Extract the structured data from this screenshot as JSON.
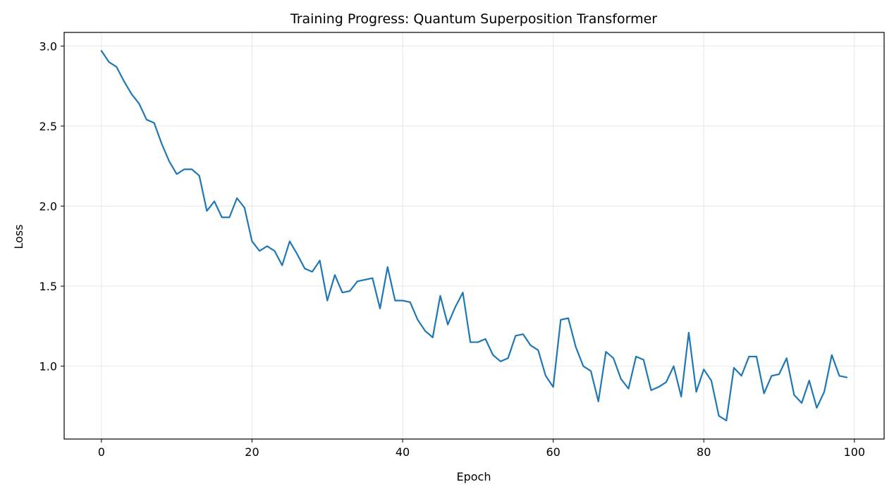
{
  "chart_data": {
    "type": "line",
    "title": "Training Progress: Quantum Superposition Transformer",
    "xlabel": "Epoch",
    "ylabel": "Loss",
    "xlim": [
      -4.95,
      103.95
    ],
    "ylim": [
      0.545,
      3.085
    ],
    "grid": true,
    "x_ticks": [
      0,
      20,
      40,
      60,
      80,
      100
    ],
    "x_tick_labels": [
      "0",
      "20",
      "40",
      "60",
      "80",
      "100"
    ],
    "y_ticks": [
      1.0,
      1.5,
      2.0,
      2.5,
      3.0
    ],
    "y_tick_labels": [
      "1.0",
      "1.5",
      "2.0",
      "2.5",
      "3.0"
    ],
    "series": [
      {
        "color": "#1f77b4",
        "x": [
          0,
          1,
          2,
          3,
          4,
          5,
          6,
          7,
          8,
          9,
          10,
          11,
          12,
          13,
          14,
          15,
          16,
          17,
          18,
          19,
          20,
          21,
          22,
          23,
          24,
          25,
          26,
          27,
          28,
          29,
          30,
          31,
          32,
          33,
          34,
          35,
          36,
          37,
          38,
          39,
          40,
          41,
          42,
          43,
          44,
          45,
          46,
          47,
          48,
          49,
          50,
          51,
          52,
          53,
          54,
          55,
          56,
          57,
          58,
          59,
          60,
          61,
          62,
          63,
          64,
          65,
          66,
          67,
          68,
          69,
          70,
          71,
          72,
          73,
          74,
          75,
          76,
          77,
          78,
          79,
          80,
          81,
          82,
          83,
          84,
          85,
          86,
          87,
          88,
          89,
          90,
          91,
          92,
          93,
          94,
          95,
          96,
          97,
          98,
          99
        ],
        "values": [
          2.97,
          2.9,
          2.87,
          2.78,
          2.7,
          2.64,
          2.54,
          2.52,
          2.39,
          2.28,
          2.2,
          2.23,
          2.23,
          2.19,
          1.97,
          2.03,
          1.93,
          1.93,
          2.05,
          1.99,
          1.78,
          1.72,
          1.75,
          1.72,
          1.63,
          1.78,
          1.7,
          1.61,
          1.59,
          1.66,
          1.41,
          1.57,
          1.46,
          1.47,
          1.53,
          1.54,
          1.55,
          1.36,
          1.62,
          1.41,
          1.41,
          1.4,
          1.29,
          1.22,
          1.18,
          1.44,
          1.26,
          1.37,
          1.46,
          1.15,
          1.15,
          1.17,
          1.07,
          1.03,
          1.05,
          1.19,
          1.2,
          1.13,
          1.1,
          0.94,
          0.87,
          1.29,
          1.3,
          1.12,
          1.0,
          0.97,
          0.78,
          1.09,
          1.05,
          0.92,
          0.86,
          1.06,
          1.04,
          0.85,
          0.87,
          0.9,
          1.0,
          0.81,
          1.21,
          0.84,
          0.98,
          0.91,
          0.69,
          0.66,
          0.99,
          0.94,
          1.06,
          1.06,
          0.83,
          0.94,
          0.95,
          1.05,
          0.82,
          0.77,
          0.91,
          0.74,
          0.84,
          1.07,
          0.94,
          0.93
        ]
      }
    ]
  }
}
